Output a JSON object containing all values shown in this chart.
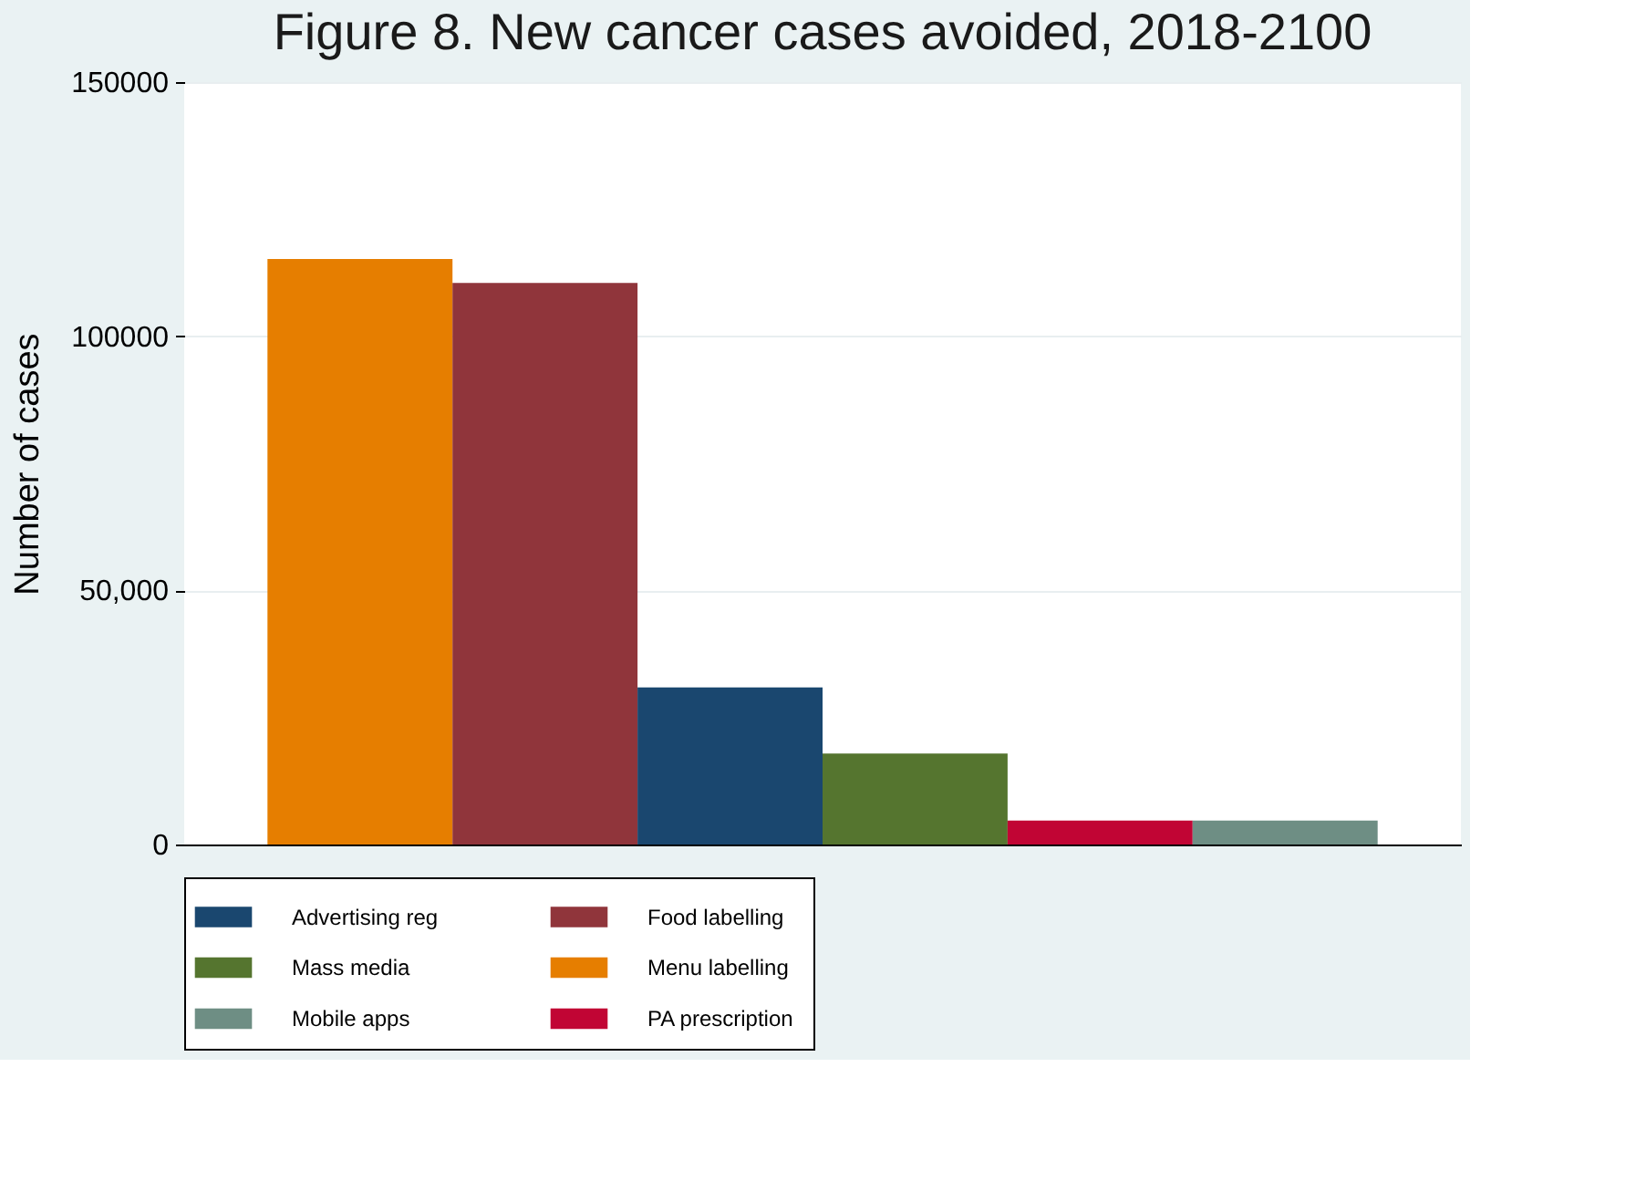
{
  "chart_data": {
    "type": "bar",
    "title": "Figure 8. New cancer cases avoided, 2018-2100",
    "ylabel": "Number of cases",
    "categories": [
      null
    ],
    "series": [
      {
        "name": "Menu labelling",
        "color": "#e67e00",
        "values": [
          115200
        ]
      },
      {
        "name": "Food labelling",
        "color": "#90353b",
        "values": [
          110500
        ]
      },
      {
        "name": "Advertising reg",
        "color": "#1a476f",
        "values": [
          30900
        ]
      },
      {
        "name": "Mass media",
        "color": "#55752f",
        "values": [
          17900
        ]
      },
      {
        "name": "PA prescription",
        "color": "#c10534",
        "values": [
          4700
        ]
      },
      {
        "name": "Mobile apps",
        "color": "#6e8e84",
        "values": [
          4700
        ]
      }
    ],
    "ylim": [
      0,
      150000
    ],
    "yticks": [
      0,
      {
        "value": 50000,
        "label": "50,000"
      },
      100000,
      150000
    ],
    "grid": "y",
    "legend": "bottom",
    "tick_labels": "y"
  }
}
